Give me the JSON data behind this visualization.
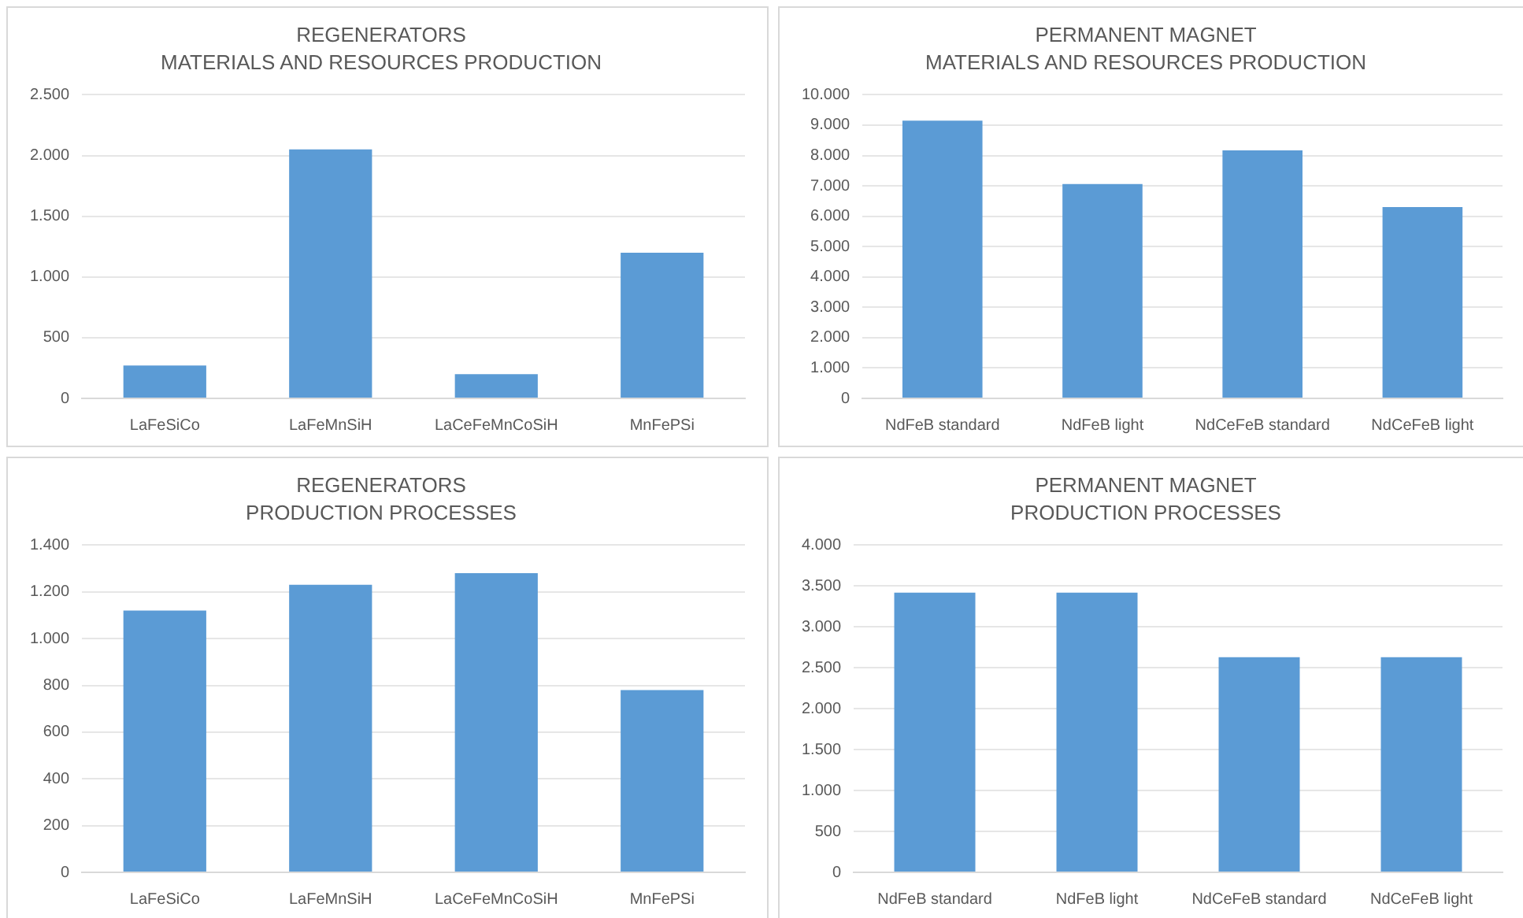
{
  "chart_data": [
    {
      "type": "bar",
      "title": "REGENERATORS",
      "subtitle": "MATERIALS AND RESOURCES PRODUCTION",
      "categories": [
        "LaFeSiCo",
        "LaFeMnSiH",
        "LaCeFeMnCoSiH",
        "MnFePSi"
      ],
      "values": [
        270,
        2050,
        200,
        1200
      ],
      "color": "#5b9bd5",
      "ylim": [
        0,
        2500
      ],
      "yticks": [
        0,
        {
          "value": 500,
          "label": "500"
        },
        {
          "value": 1000,
          "label": "1.000"
        },
        {
          "value": 1500,
          "label": "1.500"
        },
        {
          "value": 2000,
          "label": "2.000"
        },
        {
          "value": 2500,
          "label": "2.500"
        }
      ],
      "grid": "y",
      "legend": false
    },
    {
      "type": "bar",
      "title": "PERMANENT MAGNET",
      "subtitle": "MATERIALS AND RESOURCES PRODUCTION",
      "categories": [
        "NdFeB standard",
        "NdFeB light",
        "NdCeFeB standard",
        "NdCeFeB light"
      ],
      "values": [
        9150,
        7060,
        8170,
        6300
      ],
      "color": "#5b9bd5",
      "ylim": [
        0,
        10000
      ],
      "yticks": [
        0,
        {
          "value": 1000,
          "label": "1.000"
        },
        {
          "value": 2000,
          "label": "2.000"
        },
        {
          "value": 3000,
          "label": "3.000"
        },
        {
          "value": 4000,
          "label": "4.000"
        },
        {
          "value": 5000,
          "label": "5.000"
        },
        {
          "value": 6000,
          "label": "6.000"
        },
        {
          "value": 7000,
          "label": "7.000"
        },
        {
          "value": 8000,
          "label": "8.000"
        },
        {
          "value": 9000,
          "label": "9.000"
        },
        {
          "value": 10000,
          "label": "10.000"
        }
      ],
      "grid": "y",
      "legend": false
    },
    {
      "type": "bar",
      "title": "REGENERATORS",
      "subtitle": "PRODUCTION PROCESSES",
      "categories": [
        "LaFeSiCo",
        "LaFeMnSiH",
        "LaCeFeMnCoSiH",
        "MnFePSi"
      ],
      "values": [
        1120,
        1230,
        1280,
        780
      ],
      "color": "#5b9bd5",
      "ylim": [
        0,
        1400
      ],
      "yticks": [
        0,
        200,
        400,
        600,
        800,
        {
          "value": 1000,
          "label": "1.000"
        },
        {
          "value": 1200,
          "label": "1.200"
        },
        {
          "value": 1400,
          "label": "1.400"
        }
      ],
      "grid": "y",
      "legend": false
    },
    {
      "type": "bar",
      "title": "PERMANENT MAGNET",
      "subtitle": "PRODUCTION PROCESSES",
      "categories": [
        "NdFeB standard",
        "NdFeB light",
        "NdCeFeB standard",
        "NdCeFeB light"
      ],
      "values": [
        3420,
        3420,
        2630,
        2630
      ],
      "color": "#5b9bd5",
      "ylim": [
        0,
        4000
      ],
      "yticks": [
        0,
        500,
        {
          "value": 1000,
          "label": "1.000"
        },
        {
          "value": 1500,
          "label": "1.500"
        },
        {
          "value": 2000,
          "label": "2.000"
        },
        {
          "value": 2500,
          "label": "2.500"
        },
        {
          "value": 3000,
          "label": "3.000"
        },
        {
          "value": 3500,
          "label": "3.500"
        },
        {
          "value": 4000,
          "label": "4.000"
        }
      ],
      "grid": "y",
      "legend": false
    }
  ]
}
